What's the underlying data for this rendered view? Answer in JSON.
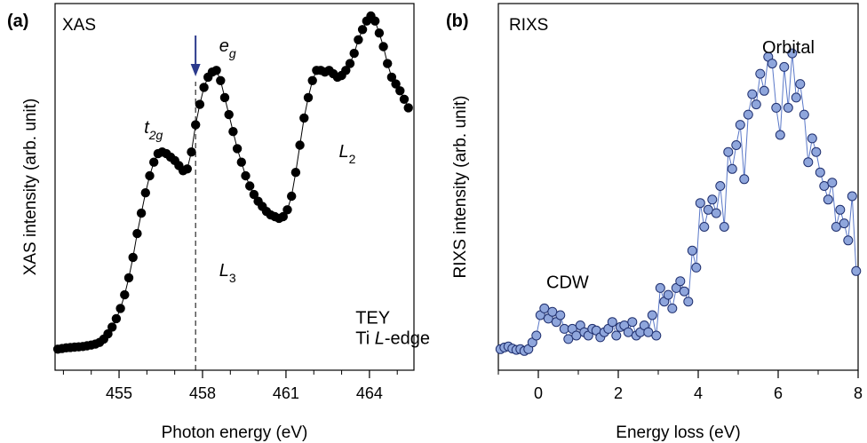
{
  "chart_data": [
    {
      "type": "scatter",
      "panel": "(a)",
      "title": "XAS",
      "xlabel": "Photon energy (eV)",
      "ylabel": "XAS intensity (arb. unit)",
      "xlim": [
        452.7,
        465.6
      ],
      "ylim": [
        0,
        1
      ],
      "xticks": [
        455,
        458,
        461,
        464
      ],
      "xtick_labels": [
        "455",
        "458",
        "461",
        "464"
      ],
      "minor_step": 1,
      "marker_color": "#000000",
      "line_color": "#000000",
      "annotations": [
        {
          "text": "e",
          "sub": "g",
          "x": 458.6,
          "y": 0.895,
          "italic": true
        },
        {
          "text": "t",
          "sub": "2g",
          "x": 455.9,
          "y": 0.655,
          "italic": true
        },
        {
          "text": "L",
          "sub": "2",
          "x": 462.9,
          "y": 0.585,
          "italic": true
        },
        {
          "text": "L",
          "sub": "3",
          "x": 458.6,
          "y": 0.235,
          "italic": true
        },
        {
          "text": "TEY",
          "x": 463.5,
          "y": 0.095
        },
        {
          "text": "Ti ",
          "italic_part": "L",
          "rest": "-edge",
          "x": 463.5,
          "y": 0.035
        }
      ],
      "marker_line": {
        "x": 457.75,
        "color": "#2b3a8c"
      },
      "series": [
        {
          "x": [
            452.8,
            452.95,
            453.1,
            453.25,
            453.4,
            453.55,
            453.7,
            453.85,
            454.0,
            454.15,
            454.3,
            454.45,
            454.6,
            454.75,
            454.9,
            455.05,
            455.2,
            455.35,
            455.5,
            455.65,
            455.8,
            455.95,
            456.1,
            456.25,
            456.4,
            456.55,
            456.7,
            456.85,
            457.0,
            457.15,
            457.3,
            457.45,
            457.6,
            457.75,
            457.9,
            458.05,
            458.2,
            458.35,
            458.5,
            458.65,
            458.8,
            458.95,
            459.1,
            459.25,
            459.4,
            459.55,
            459.7,
            459.85,
            460.0,
            460.15,
            460.3,
            460.45,
            460.6,
            460.75,
            460.9,
            461.05,
            461.2,
            461.35,
            461.5,
            461.65,
            461.8,
            461.95,
            462.1,
            462.25,
            462.4,
            462.55,
            462.7,
            462.85,
            463.0,
            463.15,
            463.3,
            463.45,
            463.6,
            463.75,
            463.9,
            464.05,
            464.2,
            464.35,
            464.5,
            464.65,
            464.8,
            464.95,
            465.1,
            465.25,
            465.4
          ],
          "y": [
            0.02,
            0.022,
            0.024,
            0.025,
            0.026,
            0.027,
            0.028,
            0.03,
            0.032,
            0.035,
            0.04,
            0.05,
            0.065,
            0.085,
            0.11,
            0.14,
            0.18,
            0.23,
            0.29,
            0.36,
            0.42,
            0.48,
            0.53,
            0.57,
            0.595,
            0.6,
            0.595,
            0.585,
            0.575,
            0.56,
            0.545,
            0.55,
            0.6,
            0.68,
            0.74,
            0.79,
            0.82,
            0.835,
            0.84,
            0.81,
            0.76,
            0.71,
            0.66,
            0.61,
            0.57,
            0.53,
            0.5,
            0.475,
            0.455,
            0.44,
            0.425,
            0.415,
            0.41,
            0.405,
            0.41,
            0.43,
            0.47,
            0.54,
            0.62,
            0.7,
            0.76,
            0.81,
            0.84,
            0.84,
            0.835,
            0.84,
            0.83,
            0.82,
            0.825,
            0.84,
            0.86,
            0.89,
            0.93,
            0.96,
            0.985,
            1.0,
            0.985,
            0.95,
            0.91,
            0.86,
            0.82,
            0.8,
            0.78,
            0.755,
            0.73
          ]
        }
      ]
    },
    {
      "type": "scatter",
      "panel": "(b)",
      "title": "RIXS",
      "xlabel": "Energy loss (eV)",
      "ylabel": "RIXS intensity (arb. unit)",
      "xlim": [
        -1,
        8
      ],
      "ylim": [
        0,
        1
      ],
      "xticks": [
        0,
        2,
        4,
        6,
        8
      ],
      "xtick_labels": [
        "0",
        "2",
        "4",
        "6",
        "8"
      ],
      "minor_step": 1,
      "marker_color": "#8fa6dc",
      "marker_edge": "#1f2f6e",
      "line_color": "#5a78c8",
      "annotations": [
        {
          "text": "Orbital",
          "x": 5.6,
          "y": 0.89
        },
        {
          "text": "CDW",
          "x": 0.2,
          "y": 0.2
        }
      ],
      "series": [
        {
          "x": [
            -0.95,
            -0.85,
            -0.75,
            -0.65,
            -0.55,
            -0.45,
            -0.35,
            -0.25,
            -0.15,
            -0.05,
            0.05,
            0.15,
            0.25,
            0.35,
            0.45,
            0.55,
            0.65,
            0.75,
            0.85,
            0.95,
            1.05,
            1.15,
            1.25,
            1.35,
            1.45,
            1.55,
            1.65,
            1.75,
            1.85,
            1.95,
            2.05,
            2.15,
            2.25,
            2.35,
            2.45,
            2.55,
            2.65,
            2.75,
            2.85,
            2.95,
            3.05,
            3.15,
            3.25,
            3.35,
            3.45,
            3.55,
            3.65,
            3.75,
            3.85,
            3.95,
            4.05,
            4.15,
            4.25,
            4.35,
            4.45,
            4.55,
            4.65,
            4.75,
            4.85,
            4.95,
            5.05,
            5.15,
            5.25,
            5.35,
            5.45,
            5.55,
            5.65,
            5.75,
            5.85,
            5.95,
            6.05,
            6.15,
            6.25,
            6.35,
            6.45,
            6.55,
            6.65,
            6.75,
            6.85,
            6.95,
            7.05,
            7.15,
            7.25,
            7.35,
            7.45,
            7.55,
            7.65,
            7.75,
            7.85,
            7.95
          ],
          "y": [
            0.02,
            0.025,
            0.028,
            0.022,
            0.018,
            0.02,
            0.015,
            0.02,
            0.04,
            0.06,
            0.12,
            0.14,
            0.11,
            0.13,
            0.1,
            0.12,
            0.08,
            0.05,
            0.08,
            0.06,
            0.09,
            0.07,
            0.06,
            0.08,
            0.075,
            0.055,
            0.07,
            0.08,
            0.1,
            0.06,
            0.085,
            0.09,
            0.07,
            0.1,
            0.06,
            0.07,
            0.09,
            0.07,
            0.12,
            0.06,
            0.2,
            0.16,
            0.18,
            0.14,
            0.2,
            0.22,
            0.19,
            0.16,
            0.31,
            0.26,
            0.45,
            0.38,
            0.43,
            0.46,
            0.42,
            0.5,
            0.38,
            0.6,
            0.55,
            0.62,
            0.68,
            0.52,
            0.71,
            0.77,
            0.74,
            0.83,
            0.78,
            0.88,
            0.86,
            0.73,
            0.65,
            0.85,
            0.73,
            0.89,
            0.76,
            0.8,
            0.71,
            0.57,
            0.64,
            0.6,
            0.54,
            0.5,
            0.46,
            0.51,
            0.38,
            0.43,
            0.39,
            0.34,
            0.47,
            0.25
          ]
        }
      ]
    }
  ]
}
